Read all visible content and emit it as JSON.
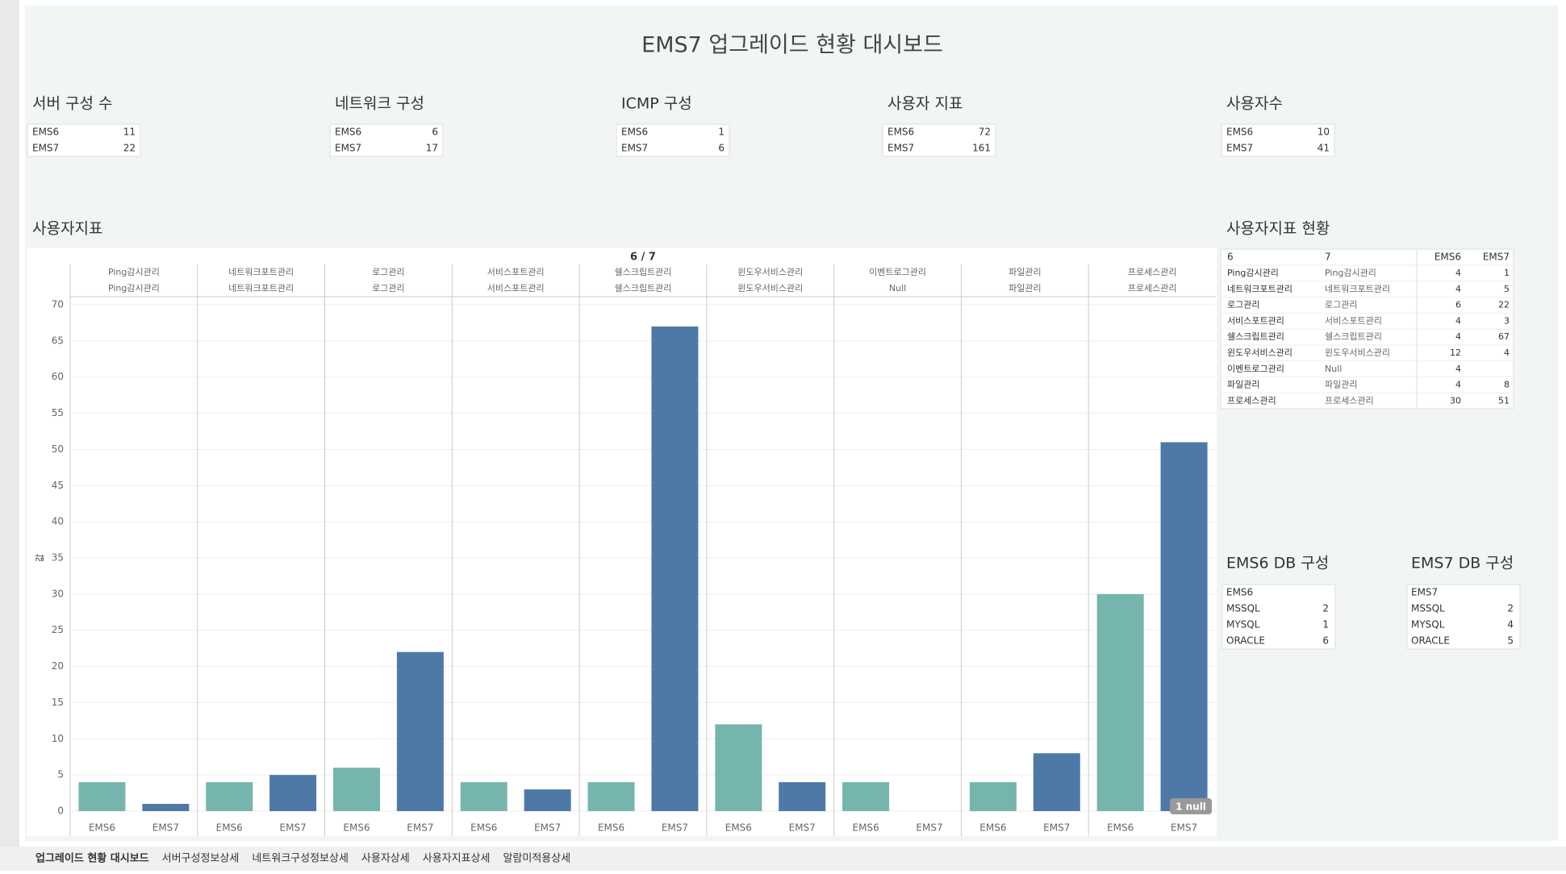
{
  "title": "EMS7 업그레이드 현황 대시보드",
  "kpis": [
    {
      "title": "서버 구성 수",
      "rows": [
        [
          "EMS6",
          11
        ],
        [
          "EMS7",
          22
        ]
      ]
    },
    {
      "title": "네트워크 구성",
      "rows": [
        [
          "EMS6",
          6
        ],
        [
          "EMS7",
          17
        ]
      ]
    },
    {
      "title": "ICMP 구성",
      "rows": [
        [
          "EMS6",
          1
        ],
        [
          "EMS7",
          6
        ]
      ]
    },
    {
      "title": "사용자 지표",
      "rows": [
        [
          "EMS6",
          72
        ],
        [
          "EMS7",
          161
        ]
      ]
    },
    {
      "title": "사용자수",
      "rows": [
        [
          "EMS6",
          10
        ],
        [
          "EMS7",
          41
        ]
      ]
    }
  ],
  "chart_data": {
    "type": "bar",
    "title": "사용자지표",
    "header": "6 / 7",
    "y_label": "값",
    "categories": [
      "Ping감시관리",
      "네트워크포트관리",
      "로그관리",
      "서비스포트관리",
      "쉘스크립트관리",
      "윈도우서비스관리",
      "이벤트로그관리",
      "파일관리",
      "프로세스관리"
    ],
    "subcategories": [
      "Ping감시관리",
      "네트워크포트관리",
      "로그관리",
      "서비스포트관리",
      "쉘스크립트관리",
      "윈도우서비스관리",
      "Null",
      "파일관리",
      "프로세스관리"
    ],
    "series": [
      {
        "name": "EMS6",
        "color": "#76b5ae",
        "values": [
          4,
          4,
          6,
          4,
          4,
          12,
          4,
          4,
          30
        ]
      },
      {
        "name": "EMS7",
        "color": "#4e79a7",
        "values": [
          1,
          5,
          22,
          3,
          67,
          4,
          null,
          8,
          51
        ]
      }
    ],
    "ylim": [
      0,
      70
    ],
    "yticks": [
      0,
      5,
      10,
      15,
      20,
      25,
      30,
      35,
      40,
      45,
      50,
      55,
      60,
      65,
      70
    ],
    "grid": true,
    "annotation": "1 null"
  },
  "status_table": {
    "title": "사용자지표 현황",
    "columns": [
      "6",
      "7"
    ]
  },
  "db_tables": [
    {
      "title": "EMS6 DB 구성",
      "header": "EMS6",
      "rows": [
        [
          "MSSQL",
          2
        ],
        [
          "MYSQL",
          1
        ],
        [
          "ORACLE",
          6
        ]
      ]
    },
    {
      "title": "EMS7 DB 구성",
      "header": "EMS7",
      "rows": [
        [
          "MSSQL",
          2
        ],
        [
          "MYSQL",
          4
        ],
        [
          "ORACLE",
          5
        ]
      ]
    }
  ],
  "tabs": [
    "업그레이드 현황 대시보드",
    "서버구성정보상세",
    "네트워크구성정보상세",
    "사용자상세",
    "사용자지표상세",
    "알람미적용상세"
  ]
}
